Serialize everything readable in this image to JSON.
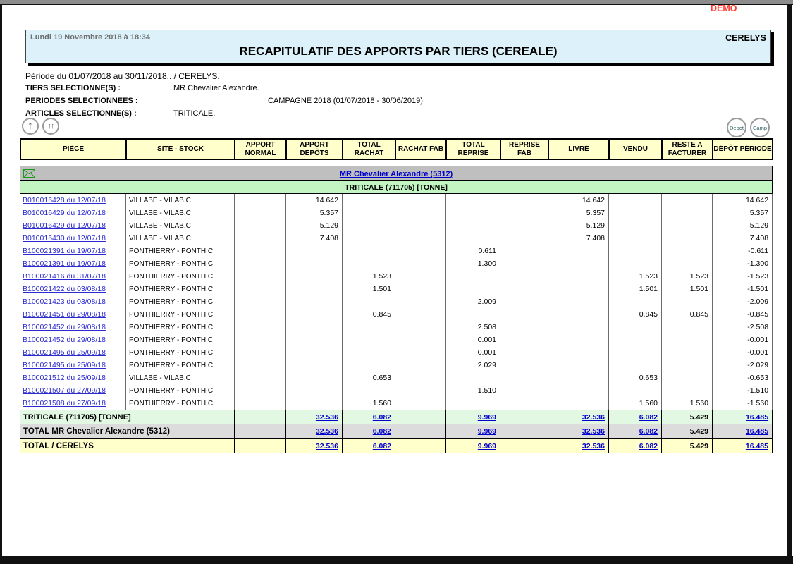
{
  "demo_label": "DEMO",
  "header": {
    "timestamp": "Lundi 19 Novembre 2018 à 18:34",
    "company": "CERELYS",
    "title": "RECAPITULATIF DES APPORTS PAR TIERS (CEREALE)"
  },
  "filters": {
    "periode": "Période du 01/07/2018 au 30/11/2018.. / CERELYS.",
    "tiers_label": "TIERS SELECTIONNE(S) :",
    "tiers_value": "MR Chevalier Alexandre.",
    "periodes_label": "PERIODES SELECTIONNEES :",
    "periodes_value": "CAMPAGNE 2018 (01/07/2018 - 30/06/2019)",
    "articles_label": "ARTICLES SELECTIONNE(S) :",
    "articles_value": "TRITICALE."
  },
  "toolbar": {
    "up_button": "↑",
    "up_double_button": "↑↑",
    "depot_button": "Depot",
    "camp_button": "Camp"
  },
  "colors": {
    "link_blue": "#0000cc",
    "demo_red": "#ff3c32",
    "header_blue": "#dcf1f9",
    "header_yellow": "#ffffcc",
    "tier_gray": "#bfbfbf",
    "article_green": "#c2f5c2",
    "subtotal_green": "#e2f8e2",
    "subtotal_gray": "#dcdcdc",
    "envelope_green": "#1e9a1e"
  },
  "table": {
    "columns": [
      "PIÈCE",
      "SITE - STOCK",
      "APPORT NORMAL",
      "APPORT DÉPÔTS",
      "TOTAL RACHAT",
      "RACHAT FAB",
      "TOTAL REPRISE",
      "REPRISE FAB",
      "LIVRÉ",
      "VENDU",
      "RESTE A FACTURER",
      "DÉPÔT PÉRIODE"
    ],
    "tier_link": "MR Chevalier Alexandre (5312)",
    "article_header": "TRITICALE (711705) [TONNE]",
    "link_columns": [
      1,
      2,
      4,
      6,
      7,
      9
    ],
    "rows": [
      {
        "piece": "B010016428 du 12/07/18",
        "site": "VILLABE - VILAB.C",
        "values": [
          "",
          "14.642",
          "",
          "",
          "",
          "",
          "14.642",
          "",
          "",
          "14.642"
        ]
      },
      {
        "piece": "B010016429 du 12/07/18",
        "site": "VILLABE - VILAB.C",
        "values": [
          "",
          "5.357",
          "",
          "",
          "",
          "",
          "5.357",
          "",
          "",
          "5.357"
        ]
      },
      {
        "piece": "B010016429 du 12/07/18",
        "site": "VILLABE - VILAB.C",
        "values": [
          "",
          "5.129",
          "",
          "",
          "",
          "",
          "5.129",
          "",
          "",
          "5.129"
        ]
      },
      {
        "piece": "B010016430 du 12/07/18",
        "site": "VILLABE - VILAB.C",
        "values": [
          "",
          "7.408",
          "",
          "",
          "",
          "",
          "7.408",
          "",
          "",
          "7.408"
        ]
      },
      {
        "piece": "B100021391 du 19/07/18",
        "site": "PONTHIERRY - PONTH.C",
        "values": [
          "",
          "",
          "",
          "",
          "0.611",
          "",
          "",
          "",
          "",
          "-0.611"
        ]
      },
      {
        "piece": "B100021391 du 19/07/18",
        "site": "PONTHIERRY - PONTH.C",
        "values": [
          "",
          "",
          "",
          "",
          "1.300",
          "",
          "",
          "",
          "",
          "-1.300"
        ]
      },
      {
        "piece": "B100021416 du 31/07/18",
        "site": "PONTHIERRY - PONTH.C",
        "values": [
          "",
          "",
          "1.523",
          "",
          "",
          "",
          "",
          "1.523",
          "1.523",
          "-1.523"
        ]
      },
      {
        "piece": "B100021422 du 03/08/18",
        "site": "PONTHIERRY - PONTH.C",
        "values": [
          "",
          "",
          "1.501",
          "",
          "",
          "",
          "",
          "1.501",
          "1.501",
          "-1.501"
        ]
      },
      {
        "piece": "B100021423 du 03/08/18",
        "site": "PONTHIERRY - PONTH.C",
        "values": [
          "",
          "",
          "",
          "",
          "2.009",
          "",
          "",
          "",
          "",
          "-2.009"
        ]
      },
      {
        "piece": "B100021451 du 29/08/18",
        "site": "PONTHIERRY - PONTH.C",
        "values": [
          "",
          "",
          "0.845",
          "",
          "",
          "",
          "",
          "0.845",
          "0.845",
          "-0.845"
        ]
      },
      {
        "piece": "B100021452 du 29/08/18",
        "site": "PONTHIERRY - PONTH.C",
        "values": [
          "",
          "",
          "",
          "",
          "2.508",
          "",
          "",
          "",
          "",
          "-2.508"
        ]
      },
      {
        "piece": "B100021452 du 29/08/18",
        "site": "PONTHIERRY - PONTH.C",
        "values": [
          "",
          "",
          "",
          "",
          "0.001",
          "",
          "",
          "",
          "",
          "-0.001"
        ]
      },
      {
        "piece": "B100021495 du 25/09/18",
        "site": "PONTHIERRY - PONTH.C",
        "values": [
          "",
          "",
          "",
          "",
          "0.001",
          "",
          "",
          "",
          "",
          "-0.001"
        ]
      },
      {
        "piece": "B100021495 du 25/09/18",
        "site": "PONTHIERRY - PONTH.C",
        "values": [
          "",
          "",
          "",
          "",
          "2.029",
          "",
          "",
          "",
          "",
          "-2.029"
        ]
      },
      {
        "piece": "B100021512 du 25/09/18",
        "site": "VILLABE - VILAB.C",
        "values": [
          "",
          "",
          "0.653",
          "",
          "",
          "",
          "",
          "0.653",
          "",
          "-0.653"
        ]
      },
      {
        "piece": "B100021507 du 27/09/18",
        "site": "PONTHIERRY - PONTH.C",
        "values": [
          "",
          "",
          "",
          "",
          "1.510",
          "",
          "",
          "",
          "",
          "-1.510"
        ]
      },
      {
        "piece": "B100021508 du 27/09/18",
        "site": "PONTHIERRY - PONTH.C",
        "values": [
          "",
          "",
          "1.560",
          "",
          "",
          "",
          "",
          "1.560",
          "1.560",
          "-1.560"
        ]
      }
    ],
    "subtotal_article": {
      "label": "TRITICALE (711705) [TONNE]",
      "values": [
        "",
        "32.536",
        "6.082",
        "",
        "9.969",
        "",
        "32.536",
        "6.082",
        "5.429",
        "16.485"
      ]
    },
    "subtotal_tier": {
      "label": "TOTAL MR Chevalier Alexandre (5312)",
      "values": [
        "",
        "32.536",
        "6.082",
        "",
        "9.969",
        "",
        "32.536",
        "6.082",
        "5.429",
        "16.485"
      ]
    },
    "grand_total": {
      "label": "TOTAL / CERELYS",
      "values": [
        "",
        "32.536",
        "6.082",
        "",
        "9.969",
        "",
        "32.536",
        "6.082",
        "5.429",
        "16.485"
      ]
    }
  }
}
